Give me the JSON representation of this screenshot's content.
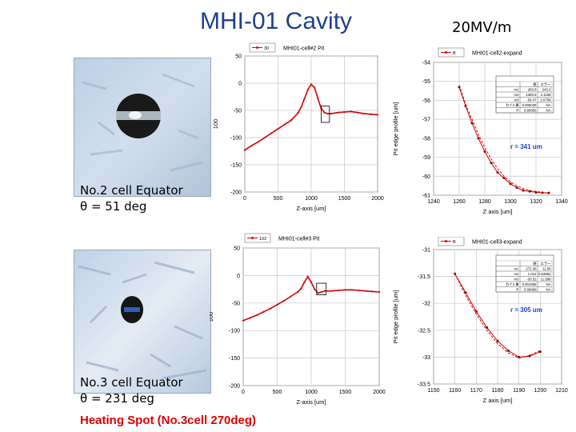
{
  "slide": {
    "title": "MHI-01 Cavity",
    "field": "20MV/m",
    "heating_note": "Heating Spot  (No.3cell 270deg)"
  },
  "cells": [
    {
      "name": "No.2 cell Equator",
      "angle": "θ = 51 deg"
    },
    {
      "name": "No.3 cell Equator",
      "angle": "θ = 231 deg"
    }
  ],
  "chart_data": [
    {
      "type": "line",
      "title": "MHI01-cell#2 Pit",
      "legend": [
        "30"
      ],
      "xlabel": "Z-axis [um]",
      "ylabel": "100",
      "xlim": [
        0,
        2000
      ],
      "ylim": [
        -200,
        50
      ],
      "xticks": [
        "0",
        "500",
        "1000",
        "1500",
        "2000"
      ],
      "yticks": [
        "50",
        "0",
        "-50",
        "-100",
        "-150",
        "-200"
      ],
      "x": [
        0,
        100,
        200,
        300,
        400,
        500,
        600,
        700,
        800,
        850,
        900,
        950,
        1000,
        1050,
        1100,
        1150,
        1200,
        1250,
        1300,
        1400,
        1500,
        1600,
        1700,
        1800,
        1900,
        2000
      ],
      "y": [
        -123,
        -115,
        -108,
        -100,
        -92,
        -84,
        -76,
        -68,
        -55,
        -44,
        -28,
        -12,
        -2,
        -8,
        -28,
        -46,
        -54,
        -56,
        -56,
        -54,
        -53,
        -52,
        -54,
        -56,
        -57,
        -58
      ]
    },
    {
      "type": "line",
      "title": "MHI01-cell2-expand",
      "legend": [
        "B"
      ],
      "xlabel": "Z axis [um]",
      "ylabel": "Pit edge profile [um]",
      "xlim": [
        1240,
        1340
      ],
      "ylim": [
        -61,
        -54
      ],
      "xticks": [
        "1240",
        "1260",
        "1280",
        "1300",
        "1320",
        "1340"
      ],
      "yticks": [
        "-54",
        "-55",
        "-56",
        "-57",
        "-58",
        "-59",
        "-60",
        "-61"
      ],
      "annotation": "r = 341 um",
      "series": [
        {
          "values_x": [
            1260,
            1265,
            1270,
            1275,
            1280,
            1285,
            1290,
            1295,
            1300,
            1305,
            1310,
            1315,
            1320,
            1325,
            1330
          ],
          "values_y": [
            -55.3,
            -56.3,
            -57.2,
            -58.0,
            -58.7,
            -59.3,
            -59.8,
            -60.1,
            -60.4,
            -60.6,
            -60.75,
            -60.8,
            -60.85,
            -60.87,
            -60.88
          ]
        },
        {
          "values_x": [
            1260,
            1265,
            1270,
            1275,
            1280,
            1285,
            1290,
            1295,
            1300,
            1305,
            1310,
            1315,
            1320,
            1325,
            1330
          ],
          "values_y": [
            -55.2,
            -56.2,
            -57.0,
            -57.8,
            -58.5,
            -59.1,
            -59.6,
            -60.0,
            -60.3,
            -60.5,
            -60.65,
            -60.75,
            -60.8,
            -60.85,
            -60.9
          ]
        }
      ],
      "table": {
        "header": [
          "",
          "値",
          "エラー"
        ],
        "rows": [
          [
            "m1",
            "283.8",
            "243.3"
          ],
          [
            "m2",
            "1383.6",
            "2.1158"
          ],
          [
            "m3",
            "-58.47",
            "2.6758"
          ],
          [
            "カイ2 乗",
            "0.006039",
            "NA"
          ],
          [
            "R",
            "0.99956",
            "NA"
          ]
        ]
      }
    },
    {
      "type": "line",
      "title": "MHI01-cell#3 Pit",
      "legend": [
        "102"
      ],
      "xlabel": "Z-axis [um]",
      "ylabel": "100",
      "xlim": [
        0,
        2000
      ],
      "ylim": [
        -200,
        50
      ],
      "xticks": [
        "0",
        "500",
        "1000",
        "1500",
        "2000"
      ],
      "yticks": [
        "50",
        "0",
        "-50",
        "-100",
        "-150",
        "-200"
      ],
      "x": [
        0,
        100,
        200,
        300,
        400,
        500,
        600,
        700,
        800,
        850,
        900,
        950,
        1000,
        1050,
        1100,
        1150,
        1200,
        1300,
        1400,
        1500,
        1600,
        1700,
        1800,
        1900,
        2000
      ],
      "y": [
        -82,
        -77,
        -72,
        -66,
        -60,
        -53,
        -46,
        -38,
        -30,
        -24,
        -12,
        -2,
        -12,
        -25,
        -32,
        -30,
        -28,
        -28,
        -27,
        -26,
        -26,
        -27,
        -28,
        -29,
        -30
      ]
    },
    {
      "type": "line",
      "title": "MHI01-cell3-expand",
      "legend": [
        "B"
      ],
      "xlabel": "Z axis [um]",
      "ylabel": "Pit edge profile [um]",
      "xlim": [
        1150,
        1210
      ],
      "ylim": [
        -33.5,
        -31
      ],
      "xticks": [
        "1150",
        "1160",
        "1170",
        "1180",
        "1190",
        "1200",
        "1210"
      ],
      "yticks": [
        "-31",
        "-31.5",
        "-32",
        "-32.5",
        "-33",
        "-33.5"
      ],
      "annotation": "r = 305 um",
      "series": [
        {
          "values_x": [
            1160,
            1165,
            1170,
            1175,
            1180,
            1185,
            1190,
            1195,
            1200
          ],
          "values_y": [
            -31.45,
            -31.8,
            -32.15,
            -32.45,
            -32.7,
            -32.88,
            -33.0,
            -32.98,
            -32.9
          ]
        },
        {
          "values_x": [
            1160,
            1165,
            1170,
            1175,
            1180,
            1185,
            1190,
            1195,
            1200
          ],
          "values_y": [
            -31.45,
            -31.85,
            -32.2,
            -32.5,
            -32.75,
            -32.92,
            -33.02,
            -32.97,
            -32.88
          ]
        }
      ],
      "table": {
        "header": [
          "",
          "値",
          "エラー"
        ],
        "rows": [
          [
            "m1",
            "272.36",
            "11.58"
          ],
          [
            "m2",
            "1.012",
            "0.63862"
          ],
          [
            "m3",
            "-30.52",
            "11.588"
          ],
          [
            "カイ2 乗",
            "0.001655",
            "NA"
          ],
          [
            "R",
            "0.99969",
            "NA"
          ]
        ]
      }
    }
  ]
}
